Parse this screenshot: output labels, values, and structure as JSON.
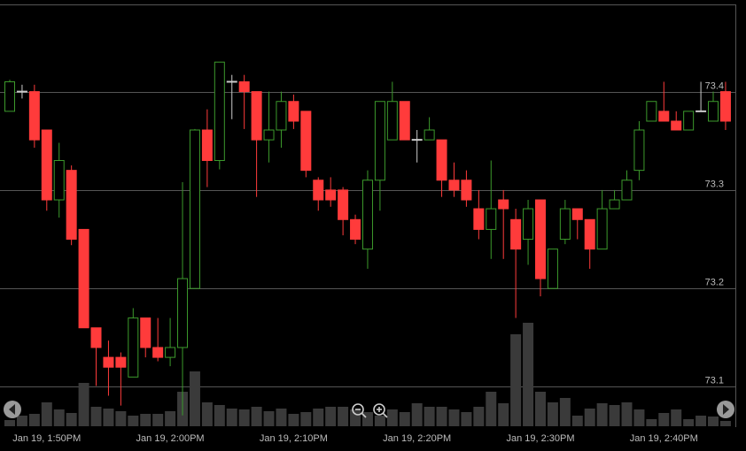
{
  "chart_data": {
    "type": "candlestick",
    "categories": [
      null,
      null,
      null,
      "Jan 19, 1:50PM",
      null,
      null,
      null,
      null,
      null,
      null,
      null,
      null,
      null,
      "Jan 19, 2:00PM",
      null,
      null,
      null,
      null,
      null,
      null,
      null,
      null,
      null,
      "Jan 19, 2:10PM",
      null,
      null,
      null,
      null,
      null,
      null,
      null,
      null,
      null,
      "Jan 19, 2:20PM",
      null,
      null,
      null,
      null,
      null,
      null,
      null,
      null,
      null,
      "Jan 19, 2:30PM",
      null,
      null,
      null,
      null,
      null,
      null,
      null,
      null,
      null,
      "Jan 19, 2:40PM",
      null,
      null,
      null,
      null,
      null
    ],
    "open": [
      73.38,
      73.4,
      73.4,
      73.361,
      73.29,
      73.32,
      73.26,
      73.16,
      73.13,
      73.13,
      73.11,
      73.17,
      73.14,
      73.13,
      73.14,
      73.2,
      73.361,
      73.33,
      73.41,
      73.41,
      73.4,
      73.351,
      73.361,
      73.39,
      73.38,
      73.31,
      73.3,
      73.3,
      73.27,
      73.24,
      73.31,
      73.351,
      73.39,
      73.351,
      73.351,
      73.351,
      73.31,
      73.31,
      73.281,
      73.26,
      73.29,
      73.27,
      73.25,
      73.29,
      73.2,
      73.25,
      73.281,
      73.27,
      73.24,
      73.281,
      73.29,
      73.32,
      73.37,
      73.38,
      73.37,
      73.361,
      73.38,
      73.37,
      73.4
    ],
    "high": [
      73.412,
      73.407,
      73.407,
      73.361,
      73.348,
      73.325,
      73.26,
      73.16,
      73.147,
      73.135,
      73.18,
      73.17,
      73.17,
      73.17,
      73.308,
      73.362,
      73.382,
      73.43,
      73.417,
      73.417,
      73.4,
      73.4,
      73.4,
      73.397,
      73.38,
      73.313,
      73.313,
      73.303,
      73.275,
      73.32,
      73.39,
      73.41,
      73.39,
      73.361,
      73.374,
      73.351,
      73.328,
      73.32,
      73.3,
      73.33,
      73.3,
      73.281,
      73.29,
      73.29,
      73.24,
      73.29,
      73.281,
      73.27,
      73.3,
      73.3,
      73.32,
      73.37,
      73.39,
      73.41,
      73.38,
      73.38,
      73.41,
      73.4,
      73.41
    ],
    "low": [
      73.38,
      73.393,
      73.343,
      73.279,
      73.272,
      73.244,
      73.16,
      73.101,
      73.091,
      73.081,
      73.11,
      73.13,
      73.126,
      73.121,
      73.071,
      73.2,
      73.303,
      73.321,
      73.372,
      73.362,
      73.293,
      73.328,
      73.343,
      73.362,
      73.313,
      73.279,
      73.283,
      73.254,
      73.245,
      73.22,
      73.279,
      73.351,
      73.351,
      73.328,
      73.351,
      73.293,
      73.293,
      73.283,
      73.25,
      73.23,
      73.23,
      73.17,
      73.224,
      73.192,
      73.2,
      73.245,
      73.25,
      73.22,
      73.24,
      73.281,
      73.29,
      73.31,
      73.37,
      73.37,
      73.361,
      73.361,
      73.38,
      73.37,
      73.361
    ],
    "close": [
      73.41,
      73.4,
      73.351,
      73.29,
      73.33,
      73.25,
      73.16,
      73.14,
      73.12,
      73.12,
      73.17,
      73.14,
      73.13,
      73.14,
      73.21,
      73.361,
      73.33,
      73.43,
      73.41,
      73.4,
      73.351,
      73.361,
      73.39,
      73.37,
      73.32,
      73.29,
      73.29,
      73.27,
      73.25,
      73.31,
      73.39,
      73.39,
      73.351,
      73.351,
      73.361,
      73.31,
      73.3,
      73.29,
      73.26,
      73.281,
      73.281,
      73.24,
      73.281,
      73.21,
      73.24,
      73.281,
      73.27,
      73.24,
      73.281,
      73.29,
      73.31,
      73.361,
      73.39,
      73.37,
      73.361,
      73.38,
      73.38,
      73.39,
      73.37
    ],
    "volume": [
      7,
      12,
      14,
      27,
      19,
      15,
      49,
      22,
      20,
      17,
      12,
      14,
      14,
      17,
      39,
      62,
      27,
      24,
      20,
      19,
      22,
      17,
      20,
      14,
      16,
      20,
      22,
      22,
      19,
      16,
      12,
      19,
      16,
      26,
      22,
      22,
      19,
      16,
      22,
      39,
      26,
      104,
      117,
      39,
      27,
      32,
      12,
      20,
      26,
      24,
      27,
      19,
      8,
      15,
      19,
      8,
      12,
      11,
      6
    ],
    "up_color": "#3c9a2c",
    "down_color": "#ff3b3b",
    "doji_color": "#cccccc",
    "volume_color": "#3a3a3a",
    "ylim": [
      73.06,
      73.4886
    ],
    "yticks": [
      73.1,
      73.2,
      73.3,
      73.4
    ],
    "grid": true,
    "y2lim": [
      0,
      120
    ]
  }
}
